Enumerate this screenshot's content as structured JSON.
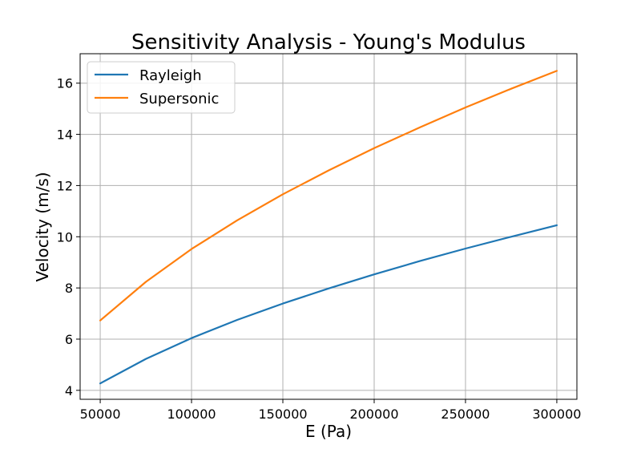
{
  "chart_data": {
    "type": "line",
    "title": "Sensitivity Analysis - Young's Modulus",
    "xlabel": "E (Pa)",
    "ylabel": "Velocity (m/s)",
    "xlim": [
      39000,
      311000
    ],
    "ylim": [
      3.65,
      17.15
    ],
    "xticks": [
      50000,
      100000,
      150000,
      200000,
      250000,
      300000
    ],
    "yticks": [
      4,
      6,
      8,
      10,
      12,
      14,
      16
    ],
    "grid": true,
    "legend_position": "top-left",
    "x": [
      50000,
      75000,
      100000,
      125000,
      150000,
      175000,
      200000,
      225000,
      250000,
      275000,
      300000
    ],
    "series": [
      {
        "name": "Rayleigh",
        "color": "#1f77b4",
        "values": [
          4.27,
          5.23,
          6.04,
          6.75,
          7.39,
          7.98,
          8.53,
          9.05,
          9.54,
          10.0,
          10.45
        ]
      },
      {
        "name": "Supersonic",
        "color": "#ff7f0e",
        "values": [
          6.73,
          8.24,
          9.52,
          10.64,
          11.66,
          12.59,
          13.46,
          14.27,
          15.05,
          15.78,
          16.48
        ]
      }
    ]
  }
}
